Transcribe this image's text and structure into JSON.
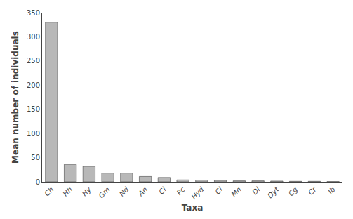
{
  "chart_data": {
    "type": "bar",
    "categories": [
      "Ch",
      "Hh",
      "Hy",
      "Gm",
      "Nd",
      "An",
      "Ci",
      "Pc",
      "Hyd",
      "Cl",
      "Mn",
      "Dl",
      "Dyt",
      "Cg",
      "Cr",
      "Ib"
    ],
    "values": [
      330,
      36,
      32,
      18,
      18,
      11,
      9,
      4,
      3.5,
      3,
      2,
      2,
      1.5,
      1,
      1,
      0.5
    ],
    "color": "#b8b8b8",
    "xlabel": "Taxa",
    "ylabel": "Mean number of individuals",
    "ylim": [
      0,
      350
    ],
    "yticks": [
      0,
      50,
      100,
      150,
      200,
      250,
      300,
      350
    ],
    "grid": false
  }
}
